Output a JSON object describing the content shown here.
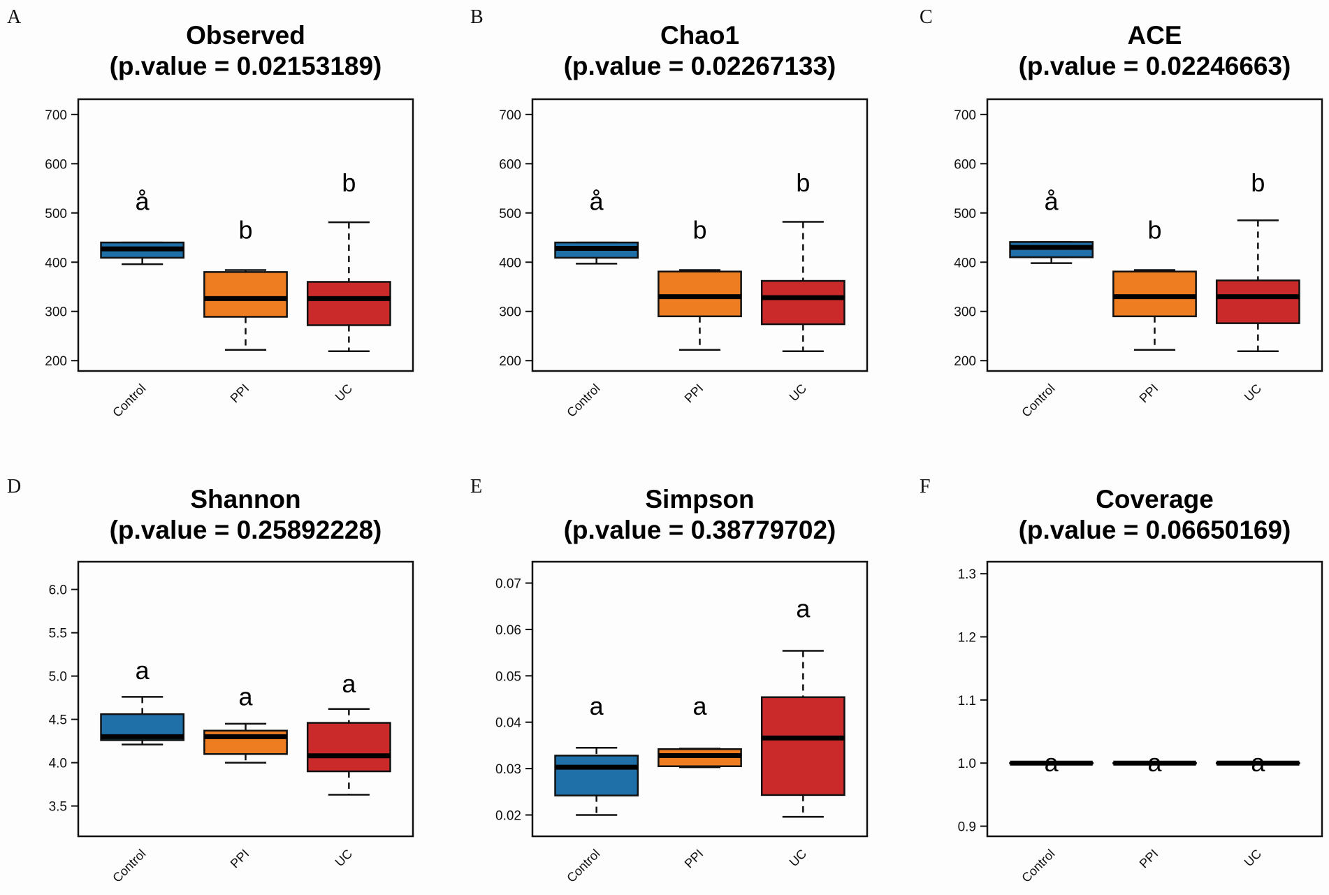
{
  "chart_data": [
    {
      "type": "box",
      "panel_label": "A",
      "title": "Observed",
      "subtitle": "(p.value = 0.02153189)",
      "categories": [
        "Control",
        "PPI",
        "UC"
      ],
      "colors": [
        "#1f6fa8",
        "#ee7d22",
        "#cb2a2a"
      ],
      "ylim": [
        179,
        731
      ],
      "yticks": [
        200,
        300,
        400,
        500,
        600,
        700
      ],
      "ytick_labels": [
        "200",
        "300",
        "400",
        "500",
        "600",
        "700"
      ],
      "boxes": [
        {
          "min": 396,
          "q1": 409,
          "median": 427,
          "q3": 440,
          "max": 440
        },
        {
          "min": 222,
          "q1": 289,
          "median": 326,
          "q3": 380,
          "max": 384
        },
        {
          "min": 219,
          "q1": 272,
          "median": 326,
          "q3": 360,
          "max": 481
        }
      ],
      "group_letters": [
        "å",
        "b",
        "b"
      ],
      "letter_y": [
        523,
        465,
        561
      ]
    },
    {
      "type": "box",
      "panel_label": "B",
      "title": "Chao1",
      "subtitle": "(p.value = 0.02267133)",
      "categories": [
        "Control",
        "PPI",
        "UC"
      ],
      "colors": [
        "#1f6fa8",
        "#ee7d22",
        "#cb2a2a"
      ],
      "ylim": [
        179,
        731
      ],
      "yticks": [
        200,
        300,
        400,
        500,
        600,
        700
      ],
      "ytick_labels": [
        "200",
        "300",
        "400",
        "500",
        "600",
        "700"
      ],
      "boxes": [
        {
          "min": 397,
          "q1": 409,
          "median": 428,
          "q3": 440,
          "max": 440
        },
        {
          "min": 222,
          "q1": 290,
          "median": 330,
          "q3": 381,
          "max": 384
        },
        {
          "min": 219,
          "q1": 274,
          "median": 328,
          "q3": 362,
          "max": 482
        }
      ],
      "group_letters": [
        "å",
        "b",
        "b"
      ],
      "letter_y": [
        523,
        465,
        561
      ]
    },
    {
      "type": "box",
      "panel_label": "C",
      "title": "ACE",
      "subtitle": "(p.value = 0.02246663)",
      "categories": [
        "Control",
        "PPI",
        "UC"
      ],
      "colors": [
        "#1f6fa8",
        "#ee7d22",
        "#cb2a2a"
      ],
      "ylim": [
        179,
        731
      ],
      "yticks": [
        200,
        300,
        400,
        500,
        600,
        700
      ],
      "ytick_labels": [
        "200",
        "300",
        "400",
        "500",
        "600",
        "700"
      ],
      "boxes": [
        {
          "min": 398,
          "q1": 410,
          "median": 430,
          "q3": 441,
          "max": 441
        },
        {
          "min": 222,
          "q1": 290,
          "median": 330,
          "q3": 381,
          "max": 384
        },
        {
          "min": 219,
          "q1": 276,
          "median": 330,
          "q3": 363,
          "max": 485
        }
      ],
      "group_letters": [
        "å",
        "b",
        "b"
      ],
      "letter_y": [
        523,
        465,
        561
      ]
    },
    {
      "type": "box",
      "panel_label": "D",
      "title": "Shannon",
      "subtitle": "(p.value = 0.25892228)",
      "categories": [
        "Control",
        "PPI",
        "UC"
      ],
      "colors": [
        "#1f6fa8",
        "#ee7d22",
        "#cb2a2a"
      ],
      "ylim": [
        3.15,
        6.32
      ],
      "yticks": [
        3.5,
        4.0,
        4.5,
        5.0,
        5.5,
        6.0
      ],
      "ytick_labels": [
        "3.5",
        "4.0",
        "4.5",
        "5.0",
        "5.5",
        "6.0"
      ],
      "boxes": [
        {
          "min": 4.21,
          "q1": 4.26,
          "median": 4.3,
          "q3": 4.56,
          "max": 4.76
        },
        {
          "min": 4.0,
          "q1": 4.1,
          "median": 4.3,
          "q3": 4.37,
          "max": 4.45
        },
        {
          "min": 3.63,
          "q1": 3.9,
          "median": 4.08,
          "q3": 4.46,
          "max": 4.62
        }
      ],
      "group_letters": [
        "a",
        "a",
        "a"
      ],
      "letter_y": [
        5.06,
        4.76,
        4.91
      ]
    },
    {
      "type": "box",
      "panel_label": "E",
      "title": "Simpson",
      "subtitle": "(p.value = 0.38779702)",
      "categories": [
        "Control",
        "PPI",
        "UC"
      ],
      "colors": [
        "#1f6fa8",
        "#ee7d22",
        "#cb2a2a"
      ],
      "ylim": [
        0.0154,
        0.0746
      ],
      "yticks": [
        0.02,
        0.03,
        0.04,
        0.05,
        0.06,
        0.07
      ],
      "ytick_labels": [
        "0.02",
        "0.03",
        "0.04",
        "0.05",
        "0.06",
        "0.07"
      ],
      "boxes": [
        {
          "min": 0.02,
          "q1": 0.0242,
          "median": 0.0303,
          "q3": 0.0328,
          "max": 0.0345
        },
        {
          "min": 0.0303,
          "q1": 0.0305,
          "median": 0.0328,
          "q3": 0.0342,
          "max": 0.0343
        },
        {
          "min": 0.0196,
          "q1": 0.0243,
          "median": 0.0366,
          "q3": 0.0454,
          "max": 0.0554
        }
      ],
      "group_letters": [
        "a",
        "a",
        "a"
      ],
      "letter_y": [
        0.0434,
        0.0434,
        0.0644
      ]
    },
    {
      "type": "box",
      "panel_label": "F",
      "title": "Coverage",
      "subtitle": "(p.value = 0.06650169)",
      "categories": [
        "Control",
        "PPI",
        "UC"
      ],
      "colors": [
        "#1f6fa8",
        "#ee7d22",
        "#cb2a2a"
      ],
      "ylim": [
        0.884,
        1.319
      ],
      "yticks": [
        0.9,
        1.0,
        1.1,
        1.2,
        1.3
      ],
      "ytick_labels": [
        "0.9",
        "1.0",
        "1.1",
        "1.2",
        "1.3"
      ],
      "boxes": [
        {
          "min": 1.0,
          "q1": 1.0,
          "median": 1.0,
          "q3": 1.0,
          "max": 1.0
        },
        {
          "min": 1.0,
          "q1": 1.0,
          "median": 1.0,
          "q3": 1.0,
          "max": 1.0
        },
        {
          "min": 1.0,
          "q1": 1.0,
          "median": 1.0,
          "q3": 1.0,
          "max": 1.0
        }
      ],
      "group_letters": [
        "a",
        "a",
        "a"
      ],
      "letter_y": [
        1.0,
        1.0,
        1.0
      ]
    }
  ]
}
